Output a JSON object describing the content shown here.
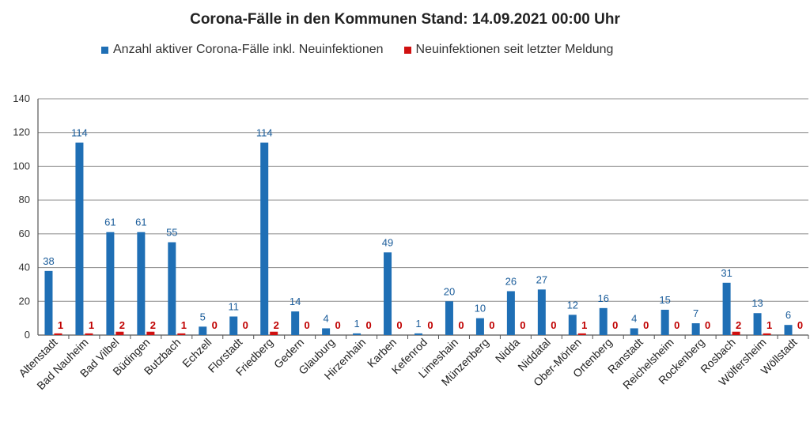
{
  "chart_data": {
    "type": "bar",
    "title": "Corona-Fälle in den Kommunen Stand: 14.09.2021 00:00 Uhr",
    "categories": [
      "Altenstadt",
      "Bad Nauheim",
      "Bad Vilbel",
      "Büdingen",
      "Butzbach",
      "Echzell",
      "Florstadt",
      "Friedberg",
      "Gedern",
      "Glauburg",
      "Hirzenhain",
      "Karben",
      "Kefenrod",
      "Limeshain",
      "Münzenberg",
      "Nidda",
      "Niddatal",
      "Ober-Mörlen",
      "Ortenberg",
      "Ranstadt",
      "Reichelsheim",
      "Rockenberg",
      "Rosbach",
      "Wölfersheim",
      "Wöllstadt"
    ],
    "series": [
      {
        "name": "Anzahl aktiver Corona-Fälle inkl. Neuinfektionen",
        "color": "#1f6fb5",
        "label_color": "#1a5c9a",
        "values": [
          38,
          114,
          61,
          61,
          55,
          5,
          11,
          114,
          14,
          4,
          1,
          49,
          1,
          20,
          10,
          26,
          27,
          12,
          16,
          4,
          15,
          7,
          31,
          13,
          6
        ]
      },
      {
        "name": "Neuinfektionen seit letzter Meldung",
        "color": "#d01010",
        "label_color": "#c00000",
        "values": [
          1,
          1,
          2,
          2,
          1,
          0,
          0,
          2,
          0,
          0,
          0,
          0,
          0,
          0,
          0,
          0,
          0,
          1,
          0,
          0,
          0,
          0,
          2,
          1,
          0
        ]
      }
    ],
    "ylim": [
      0,
      140
    ],
    "yticks": [
      0,
      20,
      40,
      60,
      80,
      100,
      120,
      140
    ],
    "grid": true,
    "legend": "top-left"
  }
}
